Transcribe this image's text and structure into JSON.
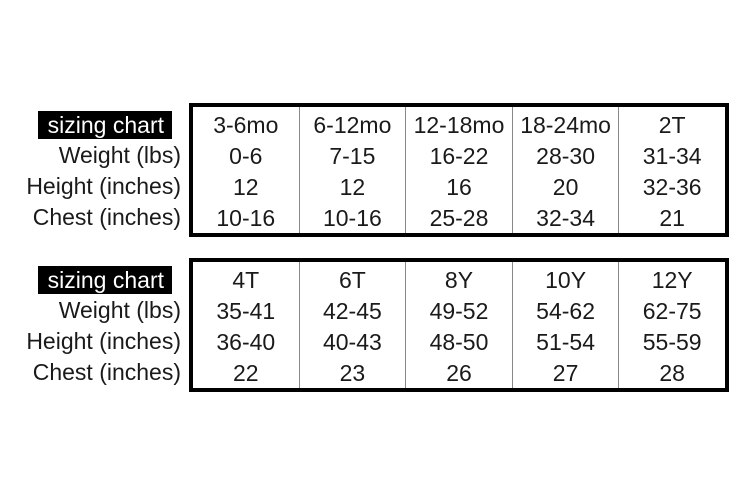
{
  "row_labels": [
    "Weight (lbs)",
    "Height (inches)",
    "Chest (inches)"
  ],
  "tables": [
    {
      "title": "sizing chart",
      "columns": [
        {
          "size": "3-6mo",
          "weight": "0-6",
          "height": "12",
          "chest": "10-16"
        },
        {
          "size": "6-12mo",
          "weight": "7-15",
          "height": "12",
          "chest": "10-16"
        },
        {
          "size": "12-18mo",
          "weight": "16-22",
          "height": "16",
          "chest": "25-28"
        },
        {
          "size": "18-24mo",
          "weight": "28-30",
          "height": "20",
          "chest": "32-34"
        },
        {
          "size": "2T",
          "weight": "31-34",
          "height": "32-36",
          "chest": "21"
        }
      ]
    },
    {
      "title": "sizing chart",
      "columns": [
        {
          "size": "4T",
          "weight": "35-41",
          "height": "36-40",
          "chest": "22"
        },
        {
          "size": "6T",
          "weight": "42-45",
          "height": "40-43",
          "chest": "23"
        },
        {
          "size": "8Y",
          "weight": "49-52",
          "height": "48-50",
          "chest": "26"
        },
        {
          "size": "10Y",
          "weight": "54-62",
          "height": "51-54",
          "chest": "27"
        },
        {
          "size": "12Y",
          "weight": "62-75",
          "height": "55-59",
          "chest": "28"
        }
      ]
    }
  ]
}
